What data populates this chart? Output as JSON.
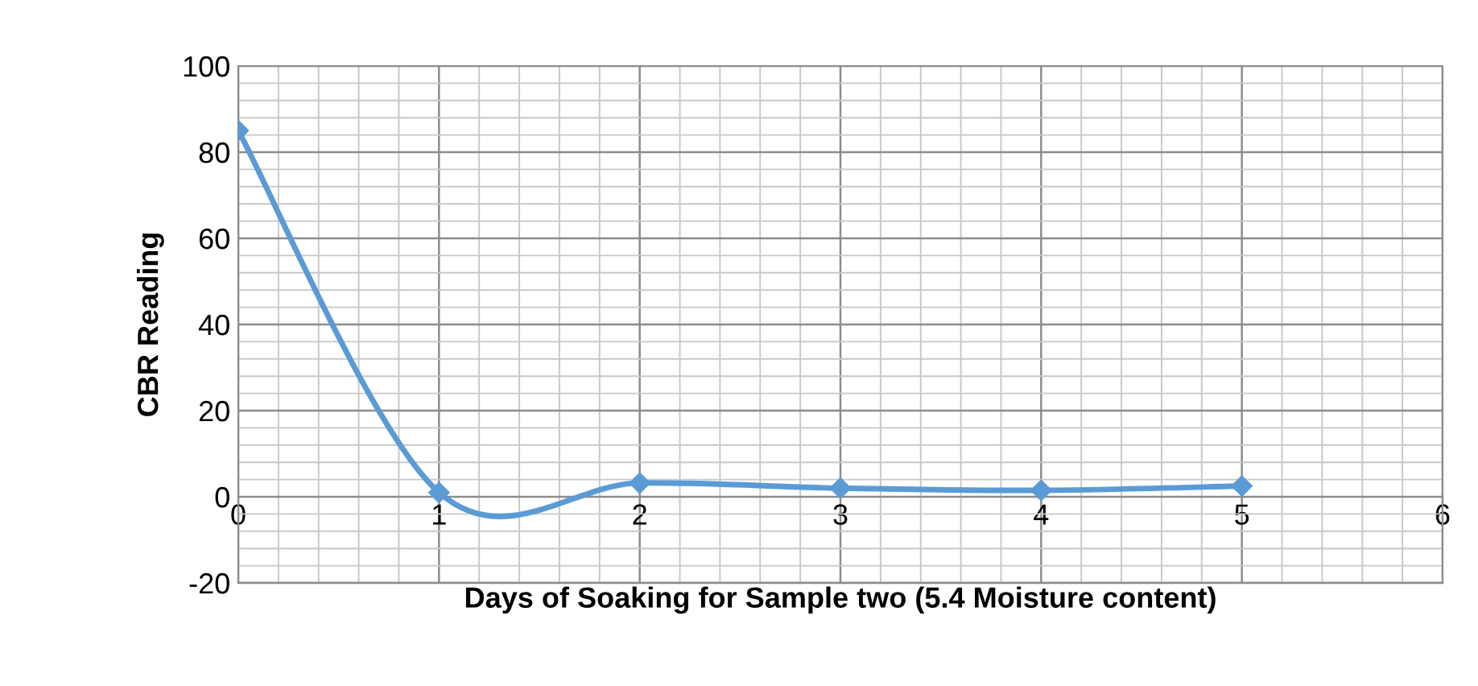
{
  "chart_data": {
    "type": "line",
    "xlabel": "Days of Soaking for Sample two (5.4 Moisture content)",
    "ylabel": "CBR Reading",
    "x": [
      0,
      1,
      2,
      3,
      4,
      5
    ],
    "series": [
      {
        "color": "#5b9bd5",
        "values": [
          85,
          1,
          3.2,
          2,
          1.5,
          2.5
        ]
      }
    ],
    "xlim": [
      0,
      6
    ],
    "xticks": [
      0,
      1,
      2,
      3,
      4,
      5,
      6
    ],
    "ylim": [
      -20,
      100
    ],
    "yticks": [
      -20,
      0,
      20,
      40,
      60,
      80,
      100
    ],
    "grid": true,
    "marker": "diamond",
    "line_style": "solid",
    "legend": false
  }
}
